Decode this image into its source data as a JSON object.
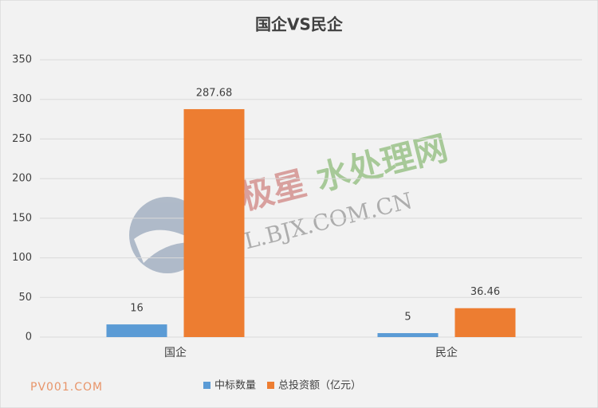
{
  "chart_data": {
    "type": "bar",
    "title": "国企VS民企",
    "categories": [
      "国企",
      "民企"
    ],
    "series": [
      {
        "name": "中标数量",
        "color": "#5b9bd5",
        "values": [
          16,
          5
        ]
      },
      {
        "name": "总投资额（亿元）",
        "color": "#ed7d31",
        "values": [
          287.68,
          36.46
        ]
      }
    ],
    "ylim": [
      0,
      350
    ],
    "yticks": [
      0,
      50,
      100,
      150,
      200,
      250,
      300,
      350
    ],
    "grid": true,
    "legend": "bottom",
    "watermarks": [
      "北极星",
      "水处理网",
      "SCL.BJX.COM.CN",
      "PV001.COM"
    ]
  }
}
